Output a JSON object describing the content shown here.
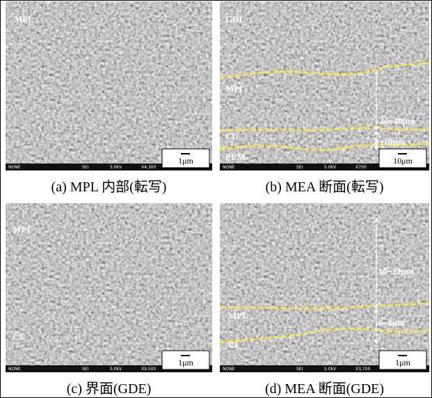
{
  "panels": [
    {
      "caption": "(a) MPL 内部(転写)",
      "labels": [
        "MPL"
      ],
      "measurements": [],
      "info": [
        "NONE",
        "SEI",
        "5.0kV",
        "X4,300"
      ],
      "scale_bar": "1μm"
    },
    {
      "caption": "(b) MEA 断面(転写)",
      "labels": [
        "GDL",
        "MPL",
        "CL",
        "PEM"
      ],
      "measurements": [
        "20~30μm",
        "8~10μm"
      ],
      "info": [
        "NONE",
        "SEI",
        "5.0kV",
        "X750"
      ],
      "scale_bar": "10μm"
    },
    {
      "caption": "(c) 界面(GDE)",
      "labels": [
        "MPL",
        "CL"
      ],
      "measurements": [],
      "info": [
        "NONE",
        "SEI",
        "5.0kV",
        "X9,500"
      ],
      "scale_bar": "1μm"
    },
    {
      "caption": "(d) MEA 断面(GDE)",
      "labels": [
        "MPL",
        "CL"
      ],
      "measurements": [
        "10~12μm",
        "6~8μm"
      ],
      "info": [
        "NONE",
        "SEI",
        "5.0kV",
        "X3,700"
      ],
      "scale_bar": "1μm"
    }
  ]
}
